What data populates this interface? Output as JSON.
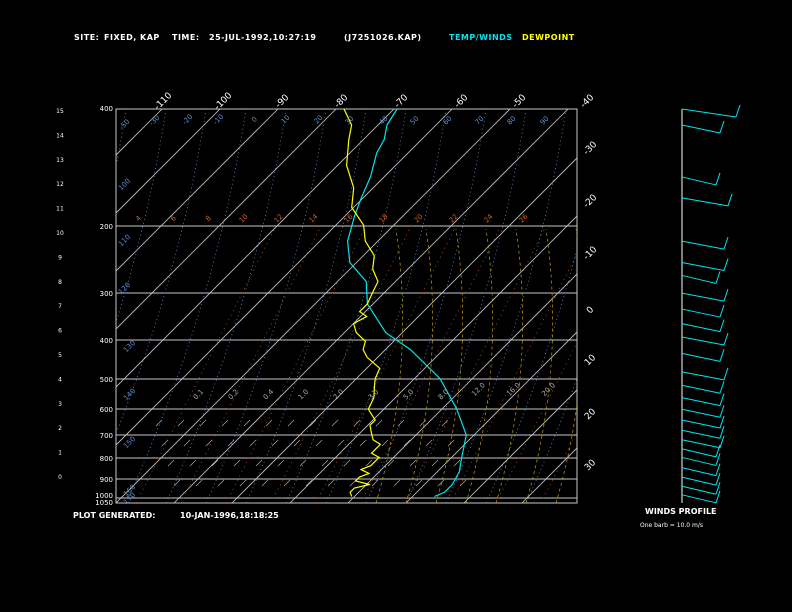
{
  "header": {
    "site_label": "SITE:",
    "site_value": "FIXED, KAP",
    "time_label": "TIME:",
    "time_value": "25-JUL-1992,10:27:19",
    "file": "(J7251026.KAP)",
    "legend_temp": "TEMP/WINDS",
    "legend_dew": "DEWPOINT"
  },
  "footer": {
    "generated_label": "PLOT GENERATED:",
    "generated_value": "10-JAN-1996,18:18:25",
    "winds_title": "WINDS PROFILE",
    "winds_note": "One barb = 10.0 m/s"
  },
  "colors": {
    "temp": "#00e5ee",
    "dew": "#ffff00",
    "grid": "#c8c8c8",
    "dry_adiabat": "#5f8fd0",
    "moist_adiabat": "#c8a000",
    "mixing_ratio": "#c86428",
    "text": "#ffffff"
  },
  "chart_data": {
    "type": "line",
    "title": "",
    "xlabel": "",
    "ylabel": "",
    "pressure_levels": [
      400,
      500,
      600,
      700,
      800,
      900,
      1000,
      1050
    ],
    "pressure_labels": [
      "400",
      "200",
      "300",
      "400",
      "500",
      "600",
      "700",
      "800",
      "900",
      "1000",
      "1050"
    ],
    "height_labels": [
      "15",
      "14",
      "13",
      "12",
      "11",
      "10",
      "9",
      "8",
      "7",
      "6",
      "5",
      "4",
      "3",
      "2",
      "1",
      "0"
    ],
    "temperature_top_labels": [
      "-110",
      "-100",
      "-90",
      "-80",
      "-70",
      "-60",
      "-50",
      "-40"
    ],
    "temperature_right_labels": [
      "-30",
      "-20",
      "-10",
      "0",
      "10",
      "20",
      "30"
    ],
    "dry_adiabat_labels": [
      "-50",
      "-30",
      "-20",
      "-10",
      "0",
      "10",
      "20",
      "30",
      "40",
      "50",
      "60",
      "70",
      "80",
      "90",
      "100",
      "110",
      "120",
      "130",
      "140",
      "150",
      "160",
      "170"
    ],
    "mixing_ratio_labels": [
      "4",
      "6",
      "8",
      "10",
      "12",
      "14",
      "16",
      "18",
      "20",
      "22",
      "24",
      "26"
    ],
    "moist_labels": [
      "0.1",
      "0.2",
      "0.4",
      "1.0",
      "2.0",
      "3.0",
      "5.0",
      "8.0",
      "12.0",
      "16.0",
      "20.0"
    ],
    "series": [
      {
        "name": "TEMP/WINDS",
        "points": [
          [
            1010,
            -9
          ],
          [
            985,
            -8
          ],
          [
            940,
            -8
          ],
          [
            870,
            -9
          ],
          [
            800,
            -11
          ],
          [
            700,
            -14
          ],
          [
            600,
            -20
          ],
          [
            500,
            -28
          ],
          [
            420,
            -38
          ],
          [
            380,
            -45
          ],
          [
            320,
            -53
          ],
          [
            280,
            -57
          ],
          [
            250,
            -63
          ],
          [
            220,
            -67
          ],
          [
            190,
            -70
          ],
          [
            170,
            -72
          ],
          [
            150,
            -74
          ],
          [
            130,
            -77
          ],
          [
            120,
            -78
          ],
          [
            110,
            -80
          ],
          [
            100,
            -81
          ]
        ]
      },
      {
        "name": "DEWPOINT",
        "points": [
          [
            1010,
            -23
          ],
          [
            985,
            -24
          ],
          [
            960,
            -24
          ],
          [
            940,
            -22
          ],
          [
            920,
            -25
          ],
          [
            900,
            -25
          ],
          [
            880,
            -24
          ],
          [
            860,
            -26
          ],
          [
            840,
            -25
          ],
          [
            820,
            -25
          ],
          [
            800,
            -25
          ],
          [
            780,
            -27
          ],
          [
            760,
            -27
          ],
          [
            740,
            -27
          ],
          [
            720,
            -29
          ],
          [
            700,
            -30
          ],
          [
            680,
            -31
          ],
          [
            660,
            -32
          ],
          [
            640,
            -32
          ],
          [
            600,
            -35
          ],
          [
            560,
            -36
          ],
          [
            520,
            -38
          ],
          [
            500,
            -39
          ],
          [
            470,
            -40
          ],
          [
            440,
            -44
          ],
          [
            420,
            -46
          ],
          [
            400,
            -47
          ],
          [
            380,
            -50
          ],
          [
            360,
            -52
          ],
          [
            345,
            -51
          ],
          [
            335,
            -53
          ],
          [
            320,
            -53
          ],
          [
            300,
            -54
          ],
          [
            280,
            -55
          ],
          [
            260,
            -58
          ],
          [
            240,
            -60
          ],
          [
            220,
            -64
          ],
          [
            200,
            -67
          ],
          [
            180,
            -72
          ],
          [
            160,
            -75
          ],
          [
            140,
            -80
          ],
          [
            120,
            -84
          ],
          [
            110,
            -86
          ],
          [
            100,
            -90
          ]
        ]
      }
    ],
    "winds_profile": {
      "barb_unit_ms": 10,
      "barbs": [
        [
          100,
          6
        ],
        [
          110,
          2
        ],
        [
          150,
          1
        ],
        [
          170,
          4
        ],
        [
          220,
          3
        ],
        [
          250,
          3
        ],
        [
          270,
          1
        ],
        [
          300,
          3
        ],
        [
          330,
          2
        ],
        [
          360,
          2
        ],
        [
          390,
          3
        ],
        [
          430,
          2
        ],
        [
          480,
          3
        ],
        [
          520,
          2
        ],
        [
          560,
          2
        ],
        [
          600,
          2
        ],
        [
          640,
          2
        ],
        [
          680,
          2
        ],
        [
          720,
          2
        ],
        [
          760,
          1
        ],
        [
          800,
          1
        ],
        [
          850,
          1
        ],
        [
          900,
          1
        ],
        [
          950,
          1
        ],
        [
          1000,
          1
        ]
      ]
    }
  }
}
